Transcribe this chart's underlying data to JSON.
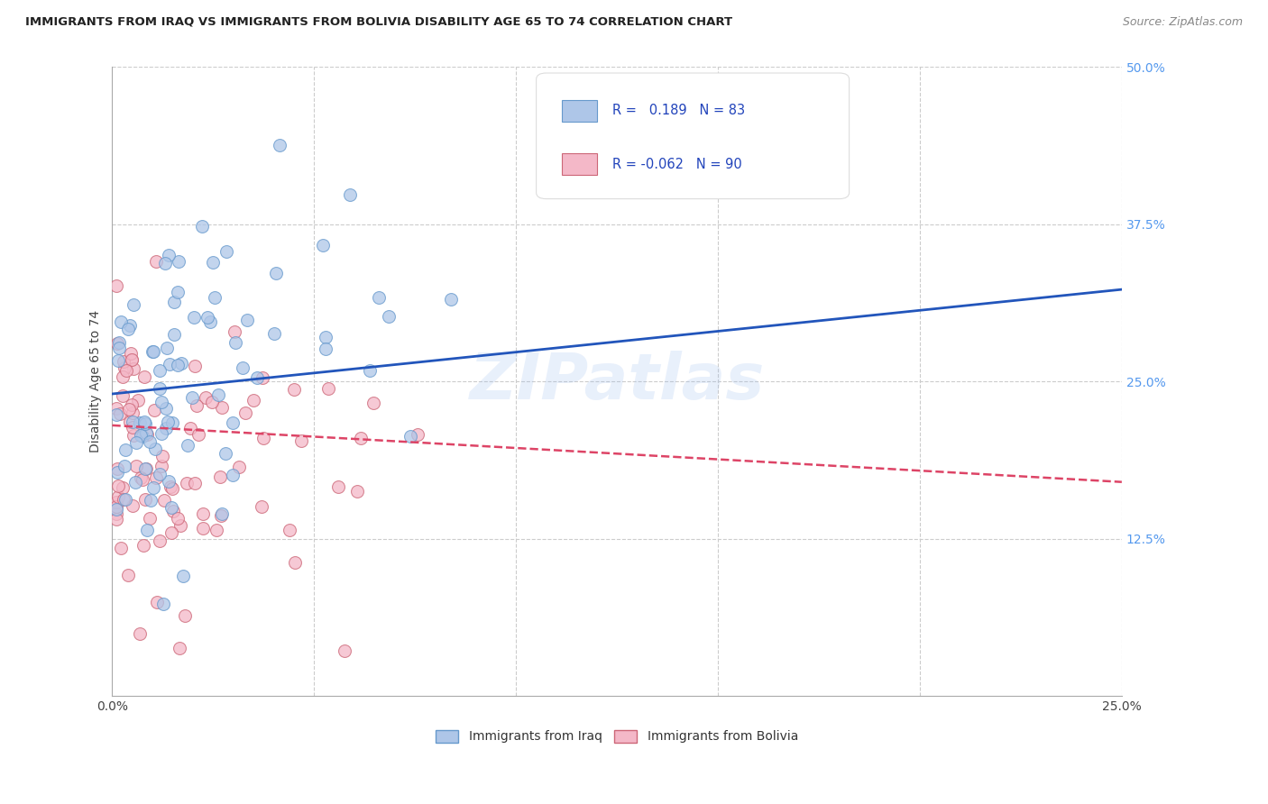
{
  "title": "IMMIGRANTS FROM IRAQ VS IMMIGRANTS FROM BOLIVIA DISABILITY AGE 65 TO 74 CORRELATION CHART",
  "source": "Source: ZipAtlas.com",
  "ylabel": "Disability Age 65 to 74",
  "xlim": [
    0.0,
    0.25
  ],
  "ylim": [
    0.0,
    0.5
  ],
  "iraq_color": "#aec6e8",
  "iraq_edge": "#6699cc",
  "bolivia_color": "#f4b8c8",
  "bolivia_edge": "#cc6677",
  "iraq_line_color": "#2255bb",
  "bolivia_line_color": "#dd4466",
  "iraq_R": 0.189,
  "iraq_N": 83,
  "bolivia_R": -0.062,
  "bolivia_N": 90,
  "watermark": "ZIPatlas",
  "background_color": "#ffffff",
  "tick_color": "#5599ee",
  "legend_text_color": "#2244bb",
  "iraq_line_y0": 0.24,
  "iraq_line_y1": 0.323,
  "bolivia_line_y0": 0.215,
  "bolivia_line_y1": 0.17
}
